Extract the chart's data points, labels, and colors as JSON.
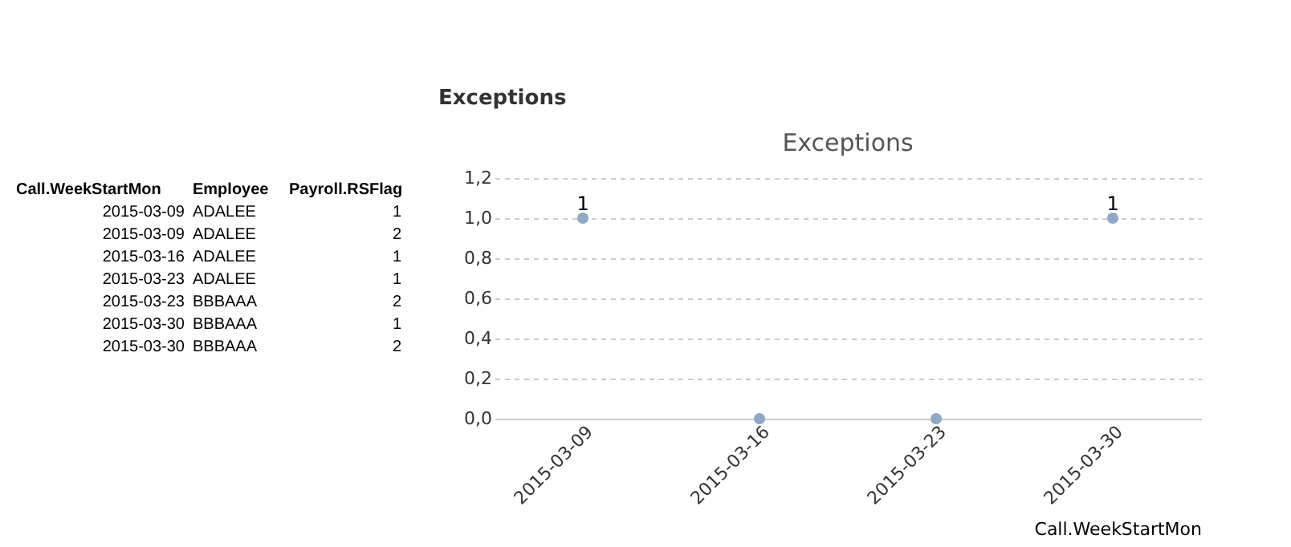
{
  "chart_data": [
    {
      "type": "other",
      "annotations": [
        "Call.WeekStartMon",
        "Employee",
        "Payroll.RSFlag",
        "2015-03-09",
        "ADALEE",
        "1",
        "2015-03-09",
        "ADALEE",
        "2",
        "2015-03-16",
        "ADALEE",
        "1",
        "2015-03-23",
        "ADALEE",
        "1",
        "2015-03-23",
        "BBBAAA",
        "2",
        "2015-03-30",
        "BBBAAA",
        "1",
        "2015-03-30",
        "BBBAAA",
        "2"
      ]
    },
    {
      "type": "scatter",
      "title": "Exceptions",
      "annotations": [
        "Exceptions"
      ],
      "xlabel": "Call.WeekStartMon",
      "categories": [
        "2015-03-09",
        "2015-03-16",
        "2015-03-23",
        "2015-03-30"
      ],
      "series": [
        {
          "color": "#8fa8c8",
          "values": [
            1,
            0,
            0,
            1
          ]
        }
      ],
      "value_labels": [
        "1",
        null,
        null,
        "1"
      ],
      "ylim": [
        0,
        1.2
      ],
      "yticks": [
        {
          "value": 0,
          "label": "0,0"
        },
        {
          "value": 0.2,
          "label": "0,2"
        },
        {
          "value": 0.4,
          "label": "0,4"
        },
        {
          "value": 0.6,
          "label": "0,6"
        },
        {
          "value": 0.8,
          "label": "0,8"
        },
        {
          "value": 1.0,
          "label": "1,0"
        },
        {
          "value": 1.2,
          "label": "1,2"
        }
      ],
      "grid": "y",
      "marker": "circle"
    }
  ]
}
